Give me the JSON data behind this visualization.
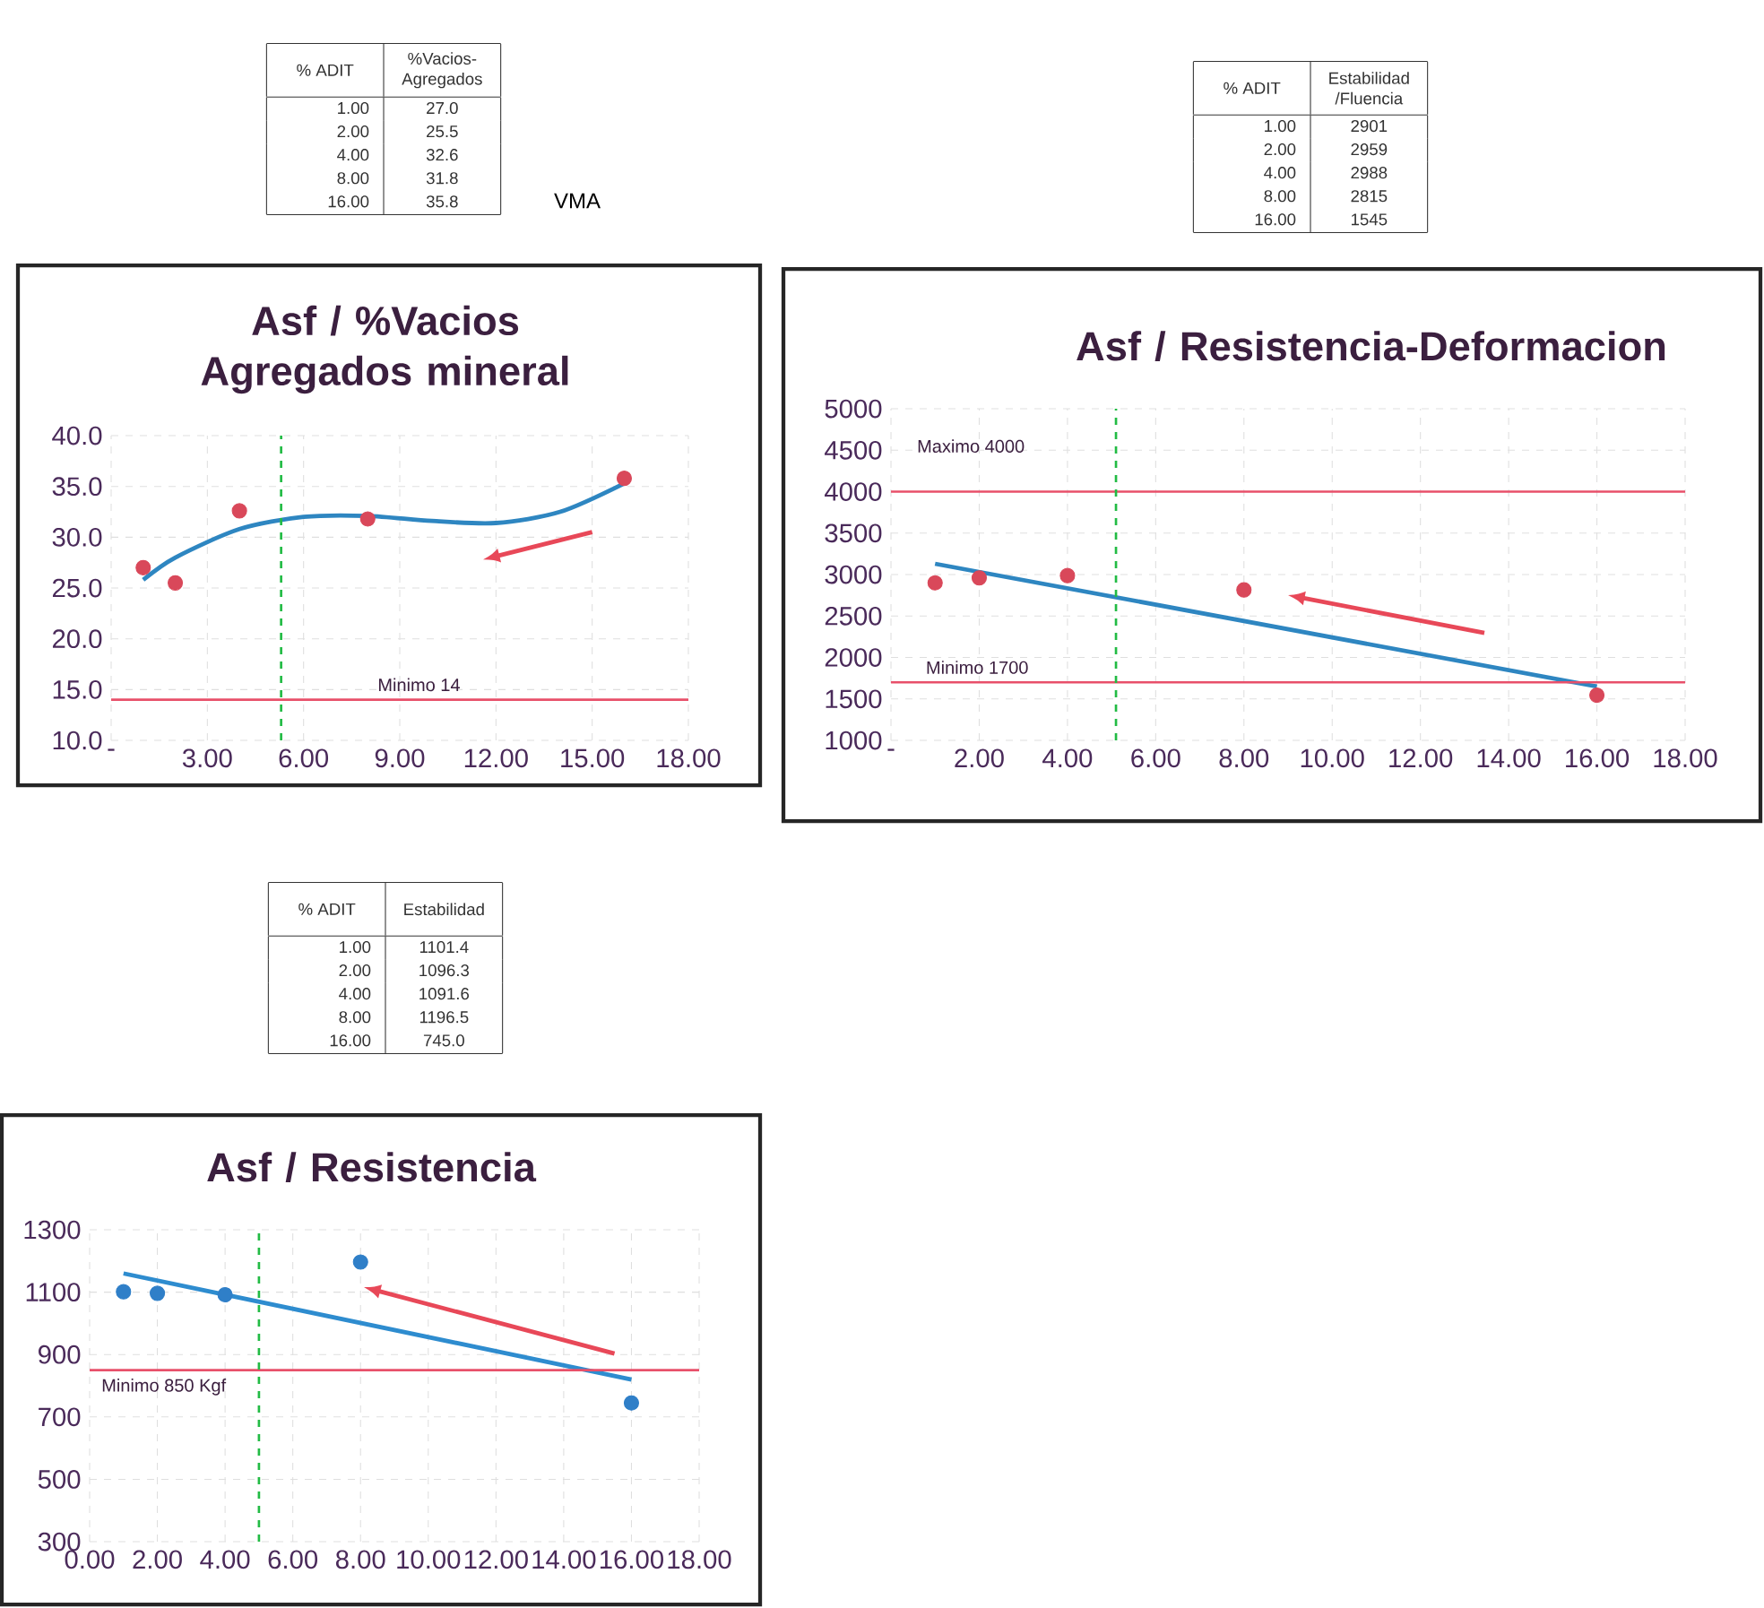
{
  "chart_data": [
    {
      "type": "other",
      "annotations": [
        "% ADIT",
        "%Vacios-Agregados",
        "1.00",
        "27.0",
        "2.00",
        "25.5",
        "4.00",
        "32.6",
        "8.00",
        "31.8",
        "16.00",
        "35.8",
        "VMA"
      ]
    },
    {
      "type": "other",
      "annotations": [
        "% ADIT",
        "Estabilidad /Fluencia",
        "1.00",
        "2901",
        "2.00",
        "2959",
        "4.00",
        "2988",
        "8.00",
        "2815",
        "16.00",
        "1545"
      ]
    },
    {
      "type": "scatter",
      "title": "Asf / %Vacios Agregados mineral",
      "x": [
        1,
        2,
        4,
        8,
        16
      ],
      "marker": "circle",
      "grid": true,
      "series": [
        {
          "type": "scatter",
          "color": "#d9485a",
          "values": [
            27.0,
            25.5,
            32.6,
            31.8,
            35.8
          ]
        },
        {
          "type": "line",
          "marker": "none",
          "color": "#2e86c1",
          "x": [
            1,
            2,
            4,
            6,
            8,
            10,
            12,
            14,
            16
          ],
          "values": [
            25.8,
            28.0,
            30.8,
            32.0,
            32.1,
            31.6,
            31.4,
            32.5,
            35.3
          ]
        }
      ],
      "ref_lines": [
        {
          "axis": "y",
          "value": 14,
          "label": "Minimo 14",
          "color": "#e8506a",
          "line_style": "solid"
        },
        {
          "axis": "x",
          "value": 5.3,
          "color": "#22bb44",
          "line_style": "dashed"
        }
      ],
      "xlim": [
        0,
        18
      ],
      "xticks": [
        {
          "value": 0,
          "label": "-"
        },
        {
          "value": 3,
          "label": "3.00"
        },
        {
          "value": 6,
          "label": "6.00"
        },
        {
          "value": 9,
          "label": "9.00"
        },
        {
          "value": 12,
          "label": "12.00"
        },
        {
          "value": 15,
          "label": "15.00"
        },
        {
          "value": 18,
          "label": "18.00"
        }
      ],
      "ylim": [
        10,
        40
      ],
      "yticks": [
        {
          "value": 10,
          "label": "10.0"
        },
        {
          "value": 15,
          "label": "15.0"
        },
        {
          "value": 20,
          "label": "20.0"
        },
        {
          "value": 25,
          "label": "25.0"
        },
        {
          "value": 30,
          "label": "30.0"
        },
        {
          "value": 35,
          "label": "35.0"
        },
        {
          "value": 40,
          "label": "40.0"
        }
      ]
    },
    {
      "type": "scatter",
      "title": "Asf / Resistencia-Deformacion",
      "x": [
        1,
        2,
        4,
        8,
        16
      ],
      "marker": "circle",
      "grid": true,
      "series": [
        {
          "type": "scatter",
          "color": "#d9485a",
          "values": [
            2901,
            2959,
            2988,
            2815,
            1545
          ]
        },
        {
          "type": "line",
          "marker": "none",
          "color": "#2e86c1",
          "x": [
            1,
            16
          ],
          "values": [
            3130,
            1650
          ]
        }
      ],
      "ref_lines": [
        {
          "axis": "y",
          "value": 4000,
          "label": "Maximo 4000",
          "color": "#e8506a",
          "line_style": "solid"
        },
        {
          "axis": "y",
          "value": 1700,
          "label": "Minimo 1700",
          "color": "#e8506a",
          "line_style": "solid"
        },
        {
          "axis": "x",
          "value": 5.1,
          "color": "#22bb44",
          "line_style": "dashed"
        }
      ],
      "xlim": [
        0,
        18
      ],
      "xticks": [
        {
          "value": 0,
          "label": "-"
        },
        {
          "value": 2,
          "label": "2.00"
        },
        {
          "value": 4,
          "label": "4.00"
        },
        {
          "value": 6,
          "label": "6.00"
        },
        {
          "value": 8,
          "label": "8.00"
        },
        {
          "value": 10,
          "label": "10.00"
        },
        {
          "value": 12,
          "label": "12.00"
        },
        {
          "value": 14,
          "label": "14.00"
        },
        {
          "value": 16,
          "label": "16.00"
        },
        {
          "value": 18,
          "label": "18.00"
        }
      ],
      "ylim": [
        1000,
        5000
      ],
      "yticks": [
        1000,
        1500,
        2000,
        2500,
        3000,
        3500,
        4000,
        4500,
        5000
      ]
    },
    {
      "type": "other",
      "annotations": [
        "% ADIT",
        "Estabilidad",
        "1.00",
        "1101.4",
        "2.00",
        "1096.3",
        "4.00",
        "1091.6",
        "8.00",
        "1196.5",
        "16.00",
        "745.0"
      ]
    },
    {
      "type": "scatter",
      "title": "Asf / Resistencia",
      "x": [
        1,
        2,
        4,
        8,
        16
      ],
      "marker": "circle",
      "grid": true,
      "series": [
        {
          "type": "scatter",
          "color": "#2f7fc8",
          "values": [
            1101.4,
            1096.3,
            1091.6,
            1196.5,
            745.0
          ]
        },
        {
          "type": "line",
          "marker": "none",
          "color": "#2e8ccf",
          "x": [
            1,
            16
          ],
          "values": [
            1160,
            820
          ]
        }
      ],
      "ref_lines": [
        {
          "axis": "y",
          "value": 850,
          "label": "Minimo 850 Kgf",
          "color": "#e8506a",
          "line_style": "solid"
        },
        {
          "axis": "x",
          "value": 5.0,
          "color": "#22bb44",
          "line_style": "dashed"
        }
      ],
      "xlim": [
        0,
        18
      ],
      "xticks": [
        {
          "value": 0,
          "label": "0.00"
        },
        {
          "value": 2,
          "label": "2.00"
        },
        {
          "value": 4,
          "label": "4.00"
        },
        {
          "value": 6,
          "label": "6.00"
        },
        {
          "value": 8,
          "label": "8.00"
        },
        {
          "value": 10,
          "label": "10.00"
        },
        {
          "value": 12,
          "label": "12.00"
        },
        {
          "value": 14,
          "label": "14.00"
        },
        {
          "value": 16,
          "label": "16.00"
        },
        {
          "value": 18,
          "label": "18.00"
        }
      ],
      "ylim": [
        300,
        1300
      ],
      "yticks": [
        300,
        500,
        700,
        900,
        1100,
        1300
      ]
    }
  ]
}
